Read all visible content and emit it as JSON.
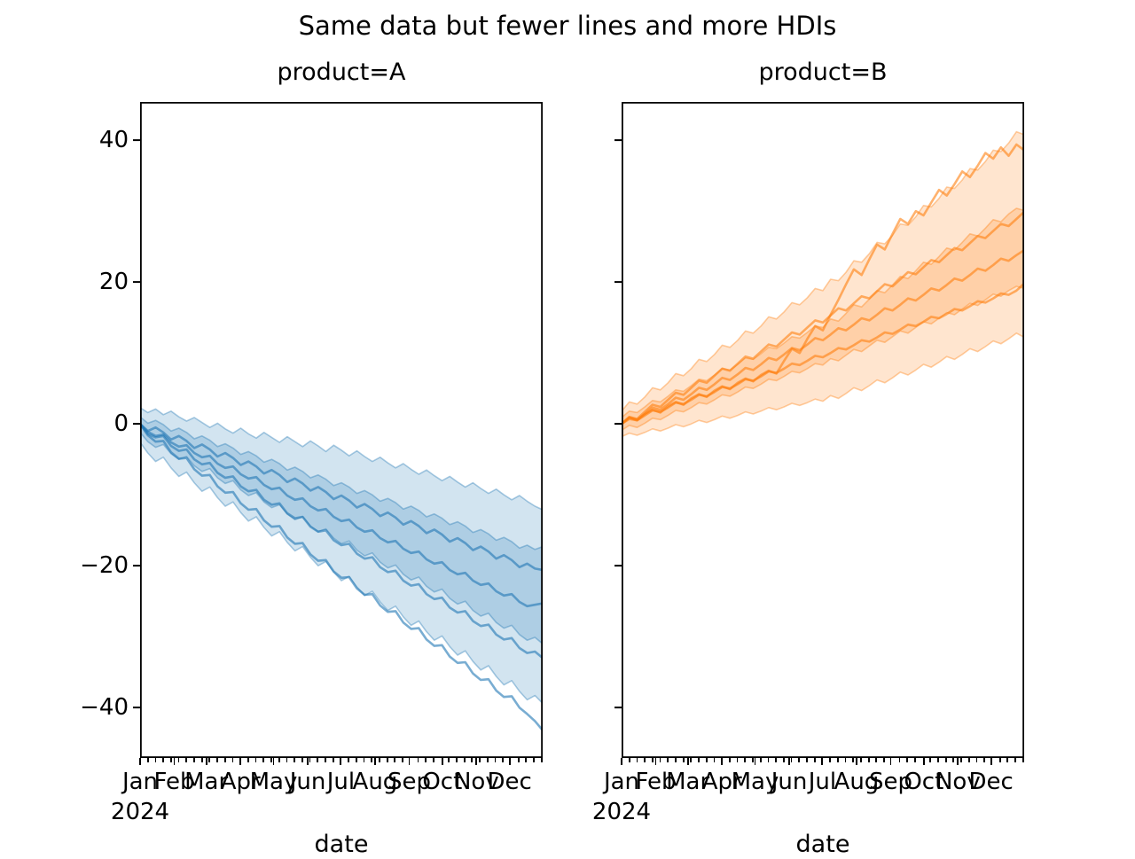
{
  "figure": {
    "title": "Same data but fewer lines and more HDIs",
    "background_color": "#ffffff",
    "text_color": "#000000"
  },
  "axes": {
    "ylim": [
      -47.1,
      45.4
    ],
    "y_ticks": [
      40,
      20,
      0,
      -20,
      -40
    ],
    "y_tick_labels": [
      "40",
      "20",
      "0",
      "−20",
      "−40"
    ],
    "x_tick_months": [
      "Jan",
      "Feb",
      "Mar",
      "Apr",
      "May",
      "Jun",
      "Jul",
      "Aug",
      "Sep",
      "Oct",
      "Nov",
      "Dec"
    ],
    "month_start_days": [
      0,
      31,
      60,
      91,
      121,
      152,
      182,
      213,
      244,
      274,
      305,
      335
    ],
    "days_in_year": 365,
    "minor_tick_interval_days": 7,
    "x_year_label": "2024",
    "x_axis_label": "date",
    "grid": false,
    "legend": "none"
  },
  "chart_data": [
    {
      "type": "line",
      "subplot_title": "product=A",
      "color": "#1f77b4",
      "band_fill_alpha": 0.2,
      "band_edge_alpha": 0.38,
      "line_alpha": 0.6,
      "x_unit": "weeks of 2024",
      "x_weeks": [
        0,
        1,
        2,
        3,
        4,
        5,
        6,
        7,
        8,
        9,
        10,
        11,
        12,
        13,
        14,
        15,
        16,
        17,
        18,
        19,
        20,
        21,
        22,
        23,
        24,
        25,
        26,
        27,
        28,
        29,
        30,
        31,
        32,
        33,
        34,
        35,
        36,
        37,
        38,
        39,
        40,
        41,
        42,
        43,
        44,
        45,
        46,
        47,
        48,
        49,
        50,
        51,
        52
      ],
      "hdi_bands": [
        {
          "name": "outer",
          "upper": [
            2.3,
            1.6,
            2.1,
            1.3,
            1.8,
            1.0,
            0.4,
            0.9,
            0.2,
            -0.5,
            0.1,
            -0.7,
            -1.3,
            -0.6,
            -1.4,
            -2.0,
            -1.2,
            -1.9,
            -2.6,
            -1.8,
            -2.5,
            -3.2,
            -2.4,
            -3.1,
            -3.9,
            -3.0,
            -3.7,
            -4.5,
            -3.8,
            -4.6,
            -5.3,
            -4.7,
            -5.5,
            -6.2,
            -5.6,
            -6.4,
            -7.1,
            -6.5,
            -7.3,
            -8.0,
            -7.4,
            -8.2,
            -8.9,
            -8.3,
            -9.1,
            -9.8,
            -9.2,
            -10.0,
            -10.7,
            -10.1,
            -10.9,
            -11.6,
            -12.1
          ],
          "lower": [
            -2.6,
            -4.1,
            -5.3,
            -4.7,
            -6.2,
            -7.4,
            -6.8,
            -8.3,
            -9.5,
            -8.9,
            -10.4,
            -11.6,
            -11.0,
            -12.5,
            -13.7,
            -13.1,
            -14.6,
            -15.8,
            -15.2,
            -16.7,
            -17.9,
            -17.3,
            -18.8,
            -20.0,
            -19.4,
            -20.9,
            -22.1,
            -21.5,
            -23.0,
            -24.2,
            -23.6,
            -25.1,
            -26.3,
            -25.7,
            -27.2,
            -28.4,
            -27.8,
            -29.3,
            -30.5,
            -29.9,
            -31.4,
            -32.6,
            -32.0,
            -33.5,
            -34.7,
            -34.1,
            -35.6,
            -36.8,
            -36.2,
            -37.7,
            -38.9,
            -38.3,
            -39.4
          ]
        },
        {
          "name": "inner",
          "upper": [
            1.0,
            0.1,
            0.5,
            -0.1,
            -1.0,
            -0.6,
            -1.2,
            -2.1,
            -1.7,
            -2.3,
            -3.2,
            -2.8,
            -3.4,
            -4.3,
            -3.9,
            -4.5,
            -5.4,
            -5.0,
            -5.6,
            -6.5,
            -6.1,
            -6.7,
            -7.6,
            -7.2,
            -7.8,
            -8.7,
            -8.3,
            -8.9,
            -9.8,
            -9.4,
            -10.0,
            -10.9,
            -10.5,
            -11.1,
            -12.0,
            -11.6,
            -12.2,
            -13.1,
            -12.7,
            -13.3,
            -14.2,
            -13.8,
            -14.4,
            -15.3,
            -14.9,
            -15.5,
            -16.4,
            -16.0,
            -16.6,
            -17.5,
            -17.1,
            -17.7,
            -17.3
          ],
          "lower": [
            -1.2,
            -2.5,
            -3.3,
            -2.9,
            -4.2,
            -5.0,
            -4.6,
            -5.9,
            -6.7,
            -6.3,
            -7.6,
            -8.4,
            -8.0,
            -9.3,
            -10.1,
            -9.7,
            -11.0,
            -11.8,
            -11.4,
            -12.7,
            -13.5,
            -13.1,
            -14.4,
            -15.2,
            -14.8,
            -16.1,
            -16.9,
            -16.5,
            -17.8,
            -18.6,
            -18.2,
            -19.5,
            -20.3,
            -19.9,
            -21.2,
            -22.0,
            -21.6,
            -22.9,
            -23.7,
            -23.3,
            -24.6,
            -25.4,
            -25.0,
            -26.3,
            -27.1,
            -26.7,
            -28.0,
            -28.8,
            -28.4,
            -29.7,
            -30.5,
            -30.1,
            -31.0
          ]
        }
      ],
      "sample_lines": [
        {
          "name": "1",
          "values": [
            0.0,
            -1.0,
            -0.5,
            -1.2,
            -2.2,
            -1.7,
            -2.4,
            -3.4,
            -2.9,
            -3.6,
            -4.6,
            -4.1,
            -4.8,
            -5.8,
            -5.3,
            -6.0,
            -7.0,
            -6.5,
            -7.2,
            -8.2,
            -7.7,
            -8.4,
            -9.4,
            -8.9,
            -9.6,
            -10.6,
            -10.1,
            -10.8,
            -11.8,
            -11.3,
            -12.0,
            -13.0,
            -12.5,
            -13.2,
            -14.2,
            -13.7,
            -14.4,
            -15.4,
            -14.9,
            -15.6,
            -16.6,
            -16.1,
            -16.8,
            -17.8,
            -17.3,
            -18.0,
            -19.0,
            -18.5,
            -19.2,
            -20.2,
            -19.7,
            -20.4,
            -20.6
          ]
        },
        {
          "name": "2",
          "values": [
            0.0,
            -1.1,
            -1.7,
            -1.5,
            -2.6,
            -3.2,
            -3.0,
            -4.1,
            -4.7,
            -4.5,
            -5.6,
            -6.2,
            -6.0,
            -7.1,
            -7.7,
            -7.5,
            -8.6,
            -9.2,
            -9.0,
            -10.1,
            -10.7,
            -10.5,
            -11.6,
            -12.2,
            -12.0,
            -13.1,
            -13.7,
            -13.5,
            -14.6,
            -15.2,
            -15.0,
            -16.1,
            -16.7,
            -16.5,
            -17.6,
            -18.2,
            -18.0,
            -19.1,
            -19.7,
            -19.5,
            -20.6,
            -21.2,
            -21.0,
            -22.1,
            -22.7,
            -22.5,
            -23.6,
            -24.2,
            -24.0,
            -25.1,
            -25.7,
            -25.5,
            -25.3
          ]
        },
        {
          "name": "3",
          "values": [
            0.0,
            -1.4,
            -1.9,
            -1.7,
            -3.1,
            -3.8,
            -3.6,
            -5.0,
            -5.7,
            -5.5,
            -6.9,
            -7.6,
            -7.4,
            -8.8,
            -9.5,
            -9.3,
            -10.7,
            -11.4,
            -11.2,
            -12.6,
            -13.3,
            -13.1,
            -14.5,
            -15.2,
            -15.0,
            -16.4,
            -17.1,
            -16.9,
            -18.3,
            -19.0,
            -18.8,
            -20.2,
            -20.9,
            -20.7,
            -22.1,
            -22.8,
            -22.6,
            -24.0,
            -24.7,
            -24.5,
            -25.9,
            -26.6,
            -26.4,
            -27.8,
            -28.5,
            -28.3,
            -29.7,
            -30.4,
            -30.2,
            -31.6,
            -32.3,
            -32.1,
            -33.0
          ]
        },
        {
          "name": "4",
          "values": [
            0.0,
            -1.6,
            -2.5,
            -2.4,
            -4.0,
            -4.9,
            -4.8,
            -6.4,
            -7.3,
            -7.2,
            -8.8,
            -9.7,
            -9.6,
            -11.2,
            -12.1,
            -12.0,
            -13.6,
            -14.5,
            -14.4,
            -16.0,
            -16.9,
            -16.8,
            -18.4,
            -19.3,
            -19.2,
            -20.8,
            -21.7,
            -21.6,
            -23.2,
            -24.1,
            -24.0,
            -25.6,
            -26.5,
            -26.4,
            -28.0,
            -28.9,
            -28.8,
            -30.4,
            -31.3,
            -31.2,
            -32.8,
            -33.7,
            -33.6,
            -35.2,
            -36.1,
            -36.0,
            -37.6,
            -38.5,
            -38.4,
            -40.0,
            -40.9,
            -41.9,
            -43.2
          ]
        }
      ]
    },
    {
      "type": "line",
      "subplot_title": "product=B",
      "color": "#ff7f0e",
      "band_fill_alpha": 0.2,
      "band_edge_alpha": 0.38,
      "line_alpha": 0.6,
      "x_unit": "weeks of 2024",
      "x_weeks": [
        0,
        1,
        2,
        3,
        4,
        5,
        6,
        7,
        8,
        9,
        10,
        11,
        12,
        13,
        14,
        15,
        16,
        17,
        18,
        19,
        20,
        21,
        22,
        23,
        24,
        25,
        26,
        27,
        28,
        29,
        30,
        31,
        32,
        33,
        34,
        35,
        36,
        37,
        38,
        39,
        40,
        41,
        42,
        43,
        44,
        45,
        46,
        47,
        48,
        49,
        50,
        51,
        52
      ],
      "hdi_bands": [
        {
          "name": "outer",
          "upper": [
            1.8,
            3.1,
            2.8,
            3.8,
            5.1,
            4.8,
            5.8,
            7.1,
            6.8,
            7.8,
            9.1,
            8.8,
            9.8,
            11.1,
            10.8,
            11.8,
            13.1,
            12.8,
            13.8,
            15.1,
            14.8,
            15.8,
            17.1,
            16.8,
            17.8,
            19.1,
            18.8,
            20.4,
            20.2,
            21.4,
            23.0,
            22.8,
            24.0,
            25.6,
            25.4,
            26.6,
            28.2,
            28.0,
            29.2,
            30.8,
            30.6,
            31.8,
            33.4,
            33.2,
            34.4,
            36.0,
            35.8,
            37.0,
            38.6,
            38.4,
            39.6,
            41.2,
            40.8
          ],
          "lower": [
            -1.8,
            -1.3,
            -1.6,
            -1.2,
            -0.7,
            -1.0,
            -0.6,
            -0.1,
            -0.4,
            0.0,
            0.5,
            0.2,
            0.6,
            1.1,
            0.8,
            1.2,
            1.7,
            1.4,
            1.8,
            2.3,
            2.0,
            2.4,
            2.9,
            2.6,
            3.0,
            3.5,
            3.2,
            4.0,
            3.6,
            4.3,
            5.1,
            4.7,
            5.4,
            6.2,
            5.8,
            6.5,
            7.3,
            6.9,
            7.6,
            8.4,
            8.0,
            8.7,
            9.5,
            9.1,
            9.8,
            10.6,
            10.2,
            10.9,
            11.7,
            11.3,
            12.0,
            12.8,
            12.2
          ]
        },
        {
          "name": "inner",
          "upper": [
            0.9,
            1.8,
            1.6,
            2.4,
            3.3,
            3.1,
            3.9,
            4.8,
            4.6,
            5.4,
            6.3,
            6.1,
            6.9,
            7.8,
            7.6,
            8.4,
            9.3,
            9.1,
            9.9,
            10.8,
            10.6,
            11.4,
            12.3,
            12.1,
            12.9,
            13.8,
            13.6,
            14.8,
            14.5,
            15.6,
            16.8,
            16.5,
            17.6,
            18.8,
            18.5,
            19.6,
            20.8,
            20.5,
            21.6,
            22.8,
            22.5,
            23.6,
            24.8,
            24.5,
            25.6,
            26.8,
            26.5,
            27.6,
            28.8,
            28.5,
            29.6,
            30.4,
            30.1
          ],
          "lower": [
            -0.9,
            -0.2,
            -0.5,
            0.1,
            0.8,
            0.6,
            1.2,
            1.9,
            1.7,
            2.3,
            3.0,
            2.8,
            3.4,
            4.1,
            3.9,
            4.5,
            5.2,
            5.0,
            5.6,
            6.3,
            6.1,
            6.7,
            7.4,
            7.2,
            7.8,
            8.5,
            8.3,
            9.2,
            8.9,
            9.7,
            10.5,
            10.2,
            11.0,
            11.8,
            11.5,
            12.3,
            13.1,
            12.8,
            13.6,
            14.4,
            14.1,
            14.9,
            15.7,
            15.4,
            16.2,
            17.0,
            16.7,
            17.5,
            18.3,
            18.0,
            18.8,
            19.4,
            19.1
          ]
        }
      ],
      "sample_lines": [
        {
          "name": "1",
          "values": [
            0.0,
            0.9,
            0.5,
            1.4,
            2.0,
            1.6,
            2.5,
            3.1,
            2.7,
            3.6,
            4.2,
            3.8,
            4.7,
            5.3,
            4.9,
            5.8,
            6.4,
            6.0,
            6.9,
            7.5,
            7.1,
            8.9,
            10.6,
            10.0,
            12.0,
            13.8,
            13.2,
            15.4,
            17.5,
            19.7,
            21.8,
            21.0,
            23.2,
            25.3,
            24.6,
            26.8,
            28.9,
            28.2,
            30.0,
            29.4,
            31.2,
            33.0,
            32.2,
            33.8,
            35.6,
            34.8,
            36.4,
            38.2,
            37.4,
            39.0,
            37.8,
            39.4,
            38.6
          ]
        },
        {
          "name": "2",
          "values": [
            0.0,
            1.0,
            0.7,
            1.7,
            2.7,
            2.4,
            3.4,
            4.4,
            4.1,
            5.1,
            6.1,
            5.8,
            6.8,
            7.8,
            7.5,
            8.5,
            9.5,
            9.2,
            10.2,
            11.2,
            10.9,
            11.9,
            12.9,
            12.6,
            13.6,
            14.6,
            14.3,
            15.3,
            16.3,
            16.0,
            17.0,
            18.0,
            17.7,
            18.7,
            19.7,
            19.4,
            20.4,
            21.4,
            21.1,
            22.1,
            23.1,
            22.8,
            23.8,
            24.8,
            24.5,
            25.5,
            26.5,
            26.2,
            27.2,
            28.2,
            27.9,
            28.9,
            29.9
          ]
        },
        {
          "name": "3",
          "values": [
            0.0,
            0.9,
            0.6,
            1.4,
            2.3,
            2.0,
            2.8,
            3.7,
            3.4,
            4.2,
            5.1,
            4.8,
            5.6,
            6.5,
            6.2,
            7.0,
            7.9,
            7.6,
            8.4,
            9.3,
            9.0,
            9.8,
            10.7,
            10.4,
            11.2,
            12.1,
            11.8,
            12.6,
            13.5,
            13.2,
            14.0,
            14.9,
            14.6,
            15.4,
            16.3,
            16.0,
            16.8,
            17.7,
            17.4,
            18.2,
            19.1,
            18.8,
            19.6,
            20.5,
            20.2,
            21.0,
            21.9,
            21.6,
            22.4,
            23.3,
            23.0,
            23.8,
            24.5
          ]
        },
        {
          "name": "4",
          "values": [
            0.0,
            0.7,
            0.5,
            1.2,
            1.9,
            1.7,
            2.3,
            3.0,
            2.8,
            3.4,
            4.1,
            3.9,
            4.5,
            5.2,
            5.0,
            5.6,
            6.3,
            6.1,
            6.7,
            7.4,
            7.2,
            7.8,
            8.5,
            8.3,
            8.9,
            9.6,
            9.4,
            10.0,
            10.7,
            10.5,
            11.1,
            11.8,
            11.6,
            12.2,
            12.9,
            12.7,
            13.3,
            14.0,
            13.8,
            14.4,
            15.1,
            14.9,
            15.5,
            16.2,
            16.0,
            16.6,
            17.3,
            17.1,
            17.7,
            18.4,
            18.2,
            18.8,
            19.8
          ]
        }
      ]
    }
  ]
}
